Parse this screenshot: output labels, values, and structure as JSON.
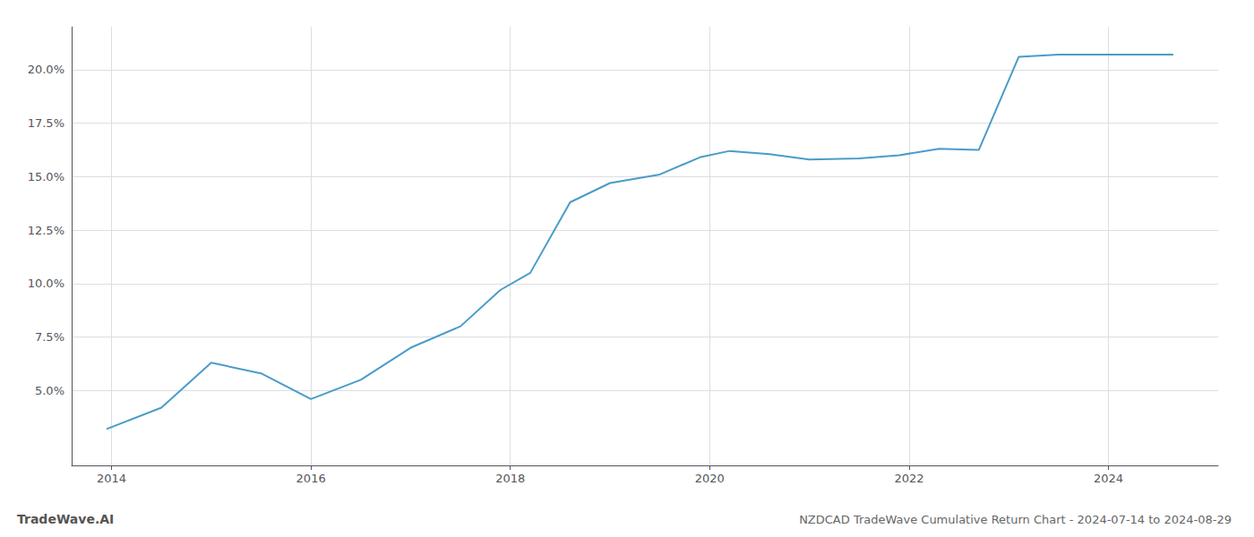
{
  "chart_data": {
    "type": "line",
    "title": "NZDCAD TradeWave Cumulative Return Chart - 2024-07-14 to 2024-08-29",
    "annotations": [
      "TradeWave.AI"
    ],
    "x": [
      2013.95,
      2014.5,
      2015.0,
      2015.5,
      2016.0,
      2016.5,
      2017.0,
      2017.5,
      2017.9,
      2018.2,
      2018.6,
      2019.0,
      2019.5,
      2019.9,
      2020.2,
      2020.6,
      2021.0,
      2021.5,
      2021.9,
      2022.3,
      2022.7,
      2023.1,
      2023.5,
      2024.0,
      2024.65
    ],
    "values": [
      3.2,
      4.2,
      6.3,
      5.8,
      4.6,
      5.5,
      7.0,
      8.0,
      9.7,
      10.5,
      13.8,
      14.7,
      15.1,
      15.9,
      16.2,
      16.05,
      15.8,
      15.85,
      16.0,
      16.3,
      16.25,
      20.6,
      20.7,
      20.7,
      20.7
    ],
    "color": "#4a9cc7",
    "xlim": [
      2013.6,
      2025.1
    ],
    "xticks": [
      2014,
      2016,
      2018,
      2020,
      2022,
      2024
    ],
    "ylim": [
      1.5,
      22.0
    ],
    "yticks": [
      {
        "value": 5.0,
        "label": "5.0%"
      },
      {
        "value": 7.5,
        "label": "7.5%"
      },
      {
        "value": 10.0,
        "label": "10.0%"
      },
      {
        "value": 12.5,
        "label": "12.5%"
      },
      {
        "value": 15.0,
        "label": "15.0%"
      },
      {
        "value": 17.5,
        "label": "17.5%"
      },
      {
        "value": 20.0,
        "label": "20.0%"
      }
    ],
    "grid": true
  }
}
